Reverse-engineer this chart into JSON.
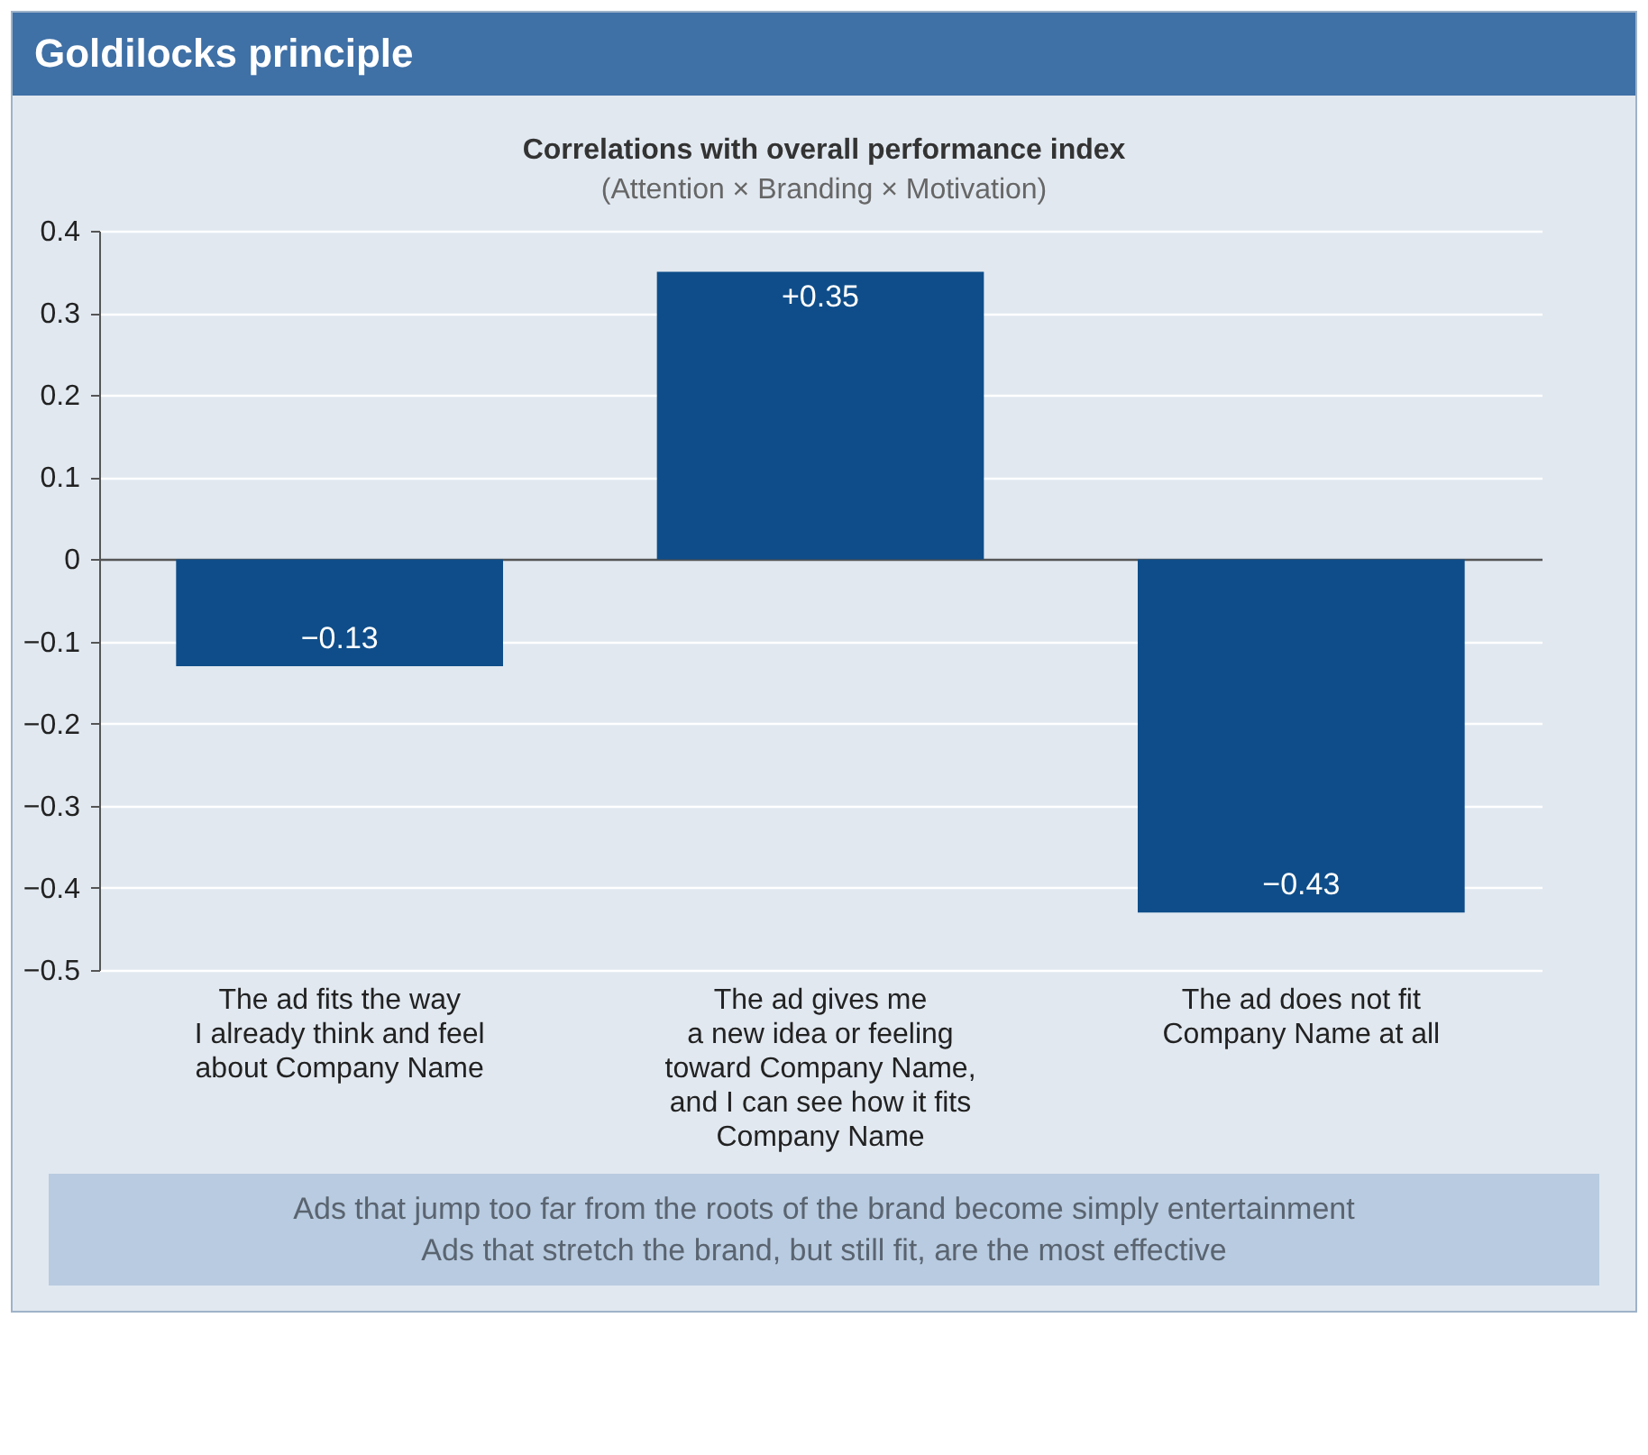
{
  "chart_data": {
    "type": "bar",
    "title": "Goldilocks principle",
    "subtitle": "Correlations with overall performance index",
    "annotations": [
      "(Attention × Branding × Motivation)",
      "Ads that jump too far from the roots of the brand become simply entertainment",
      "Ads that stretch the brand, but still fit, are the most effective"
    ],
    "categories": [
      "The ad fits the way\nI already think and feel\nabout Company Name",
      "The ad gives me\na new idea or feeling\ntoward Company Name,\nand I can see how it fits\nCompany Name",
      "The ad does not fit\nCompany Name at all"
    ],
    "values": [
      -0.13,
      0.35,
      -0.43
    ],
    "value_labels": [
      "−0.13",
      "+0.35",
      "−0.43"
    ],
    "color": "#0e4d89",
    "ylim": [
      -0.5,
      0.4
    ],
    "yticks": [
      0.4,
      0.3,
      0.2,
      0.1,
      0,
      {
        "value": -0.1,
        "label": "−0.1"
      },
      {
        "value": -0.2,
        "label": "−0.2"
      },
      {
        "value": -0.3,
        "label": "−0.3"
      },
      {
        "value": -0.4,
        "label": "−0.4"
      },
      {
        "value": -0.5,
        "label": "−0.5"
      }
    ],
    "grid": "y"
  }
}
